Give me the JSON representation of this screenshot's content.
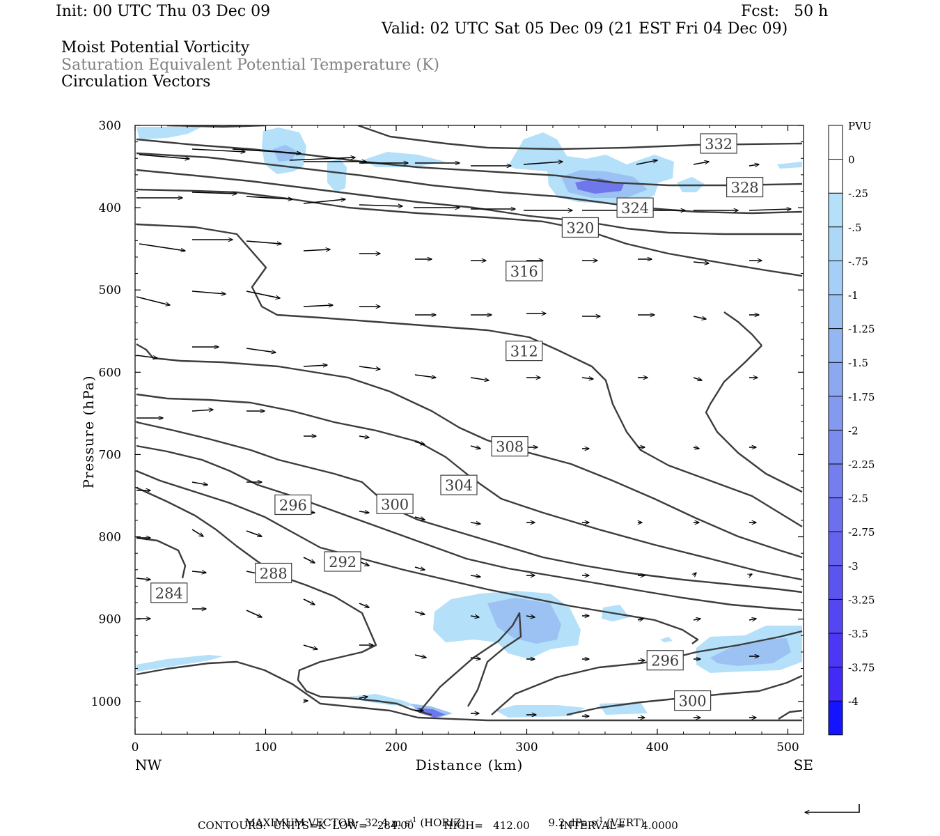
{
  "header": {
    "init": "Init: 00 UTC Thu 03 Dec 09",
    "fcst": "Fcst:   50 h",
    "valid": "Valid: 02 UTC Sat 05 Dec 09 (21 EST Fri 04 Dec 09)",
    "field1": "Moist Potential Vorticity",
    "field2": "Saturation Equivalent Potential Temperature (K)",
    "field3": "Circulation Vectors"
  },
  "footer": {
    "max_vector_label": "MAXIMUM VECTOR:",
    "max_horiz": "32.4 m s",
    "horiz_tag": "(HORIZ)",
    "max_vert": "9.2 dPa s",
    "vert_tag": "(VERT)",
    "exponent": "-1",
    "contours_line": "CONTOURS:  UNITS=K  LOW=   284.00         HIGH=   412.00         INTERVAL=     4.0000"
  },
  "colors": {
    "contour": "#3c3c3c",
    "shade_light": "#b4e0fa",
    "shade_mid": "#9cc2f4",
    "shade_strong": "#6e78ea",
    "vector": "#000000"
  },
  "chart_data": {
    "type": "contour",
    "xlabel": "Distance (km)",
    "ylabel": "Pressure (hPa)",
    "xlim": [
      0,
      512
    ],
    "ylim": [
      300,
      1040
    ],
    "x_ticks": [
      0,
      100,
      200,
      300,
      400,
      500
    ],
    "y_ticks": [
      300,
      400,
      500,
      600,
      700,
      800,
      900,
      1000
    ],
    "x_end_labels": {
      "left": "NW",
      "right": "SE"
    },
    "colorbar": {
      "title": "PVU",
      "levels": [
        "0",
        "-.25",
        "-.5",
        "-.75",
        "-1",
        "-1.25",
        "-1.5",
        "-1.75",
        "-2",
        "-2.25",
        "-2.5",
        "-2.75",
        "-3",
        "-3.25",
        "-3.5",
        "-3.75",
        "-4"
      ],
      "colors": [
        "#ffffff",
        "#ffffff",
        "#b4e0fa",
        "#acd8f8",
        "#a4cff6",
        "#9cc2f4",
        "#94b6f2",
        "#8ca8f0",
        "#849af0",
        "#7c8cee",
        "#747eee",
        "#6c70ee",
        "#6462ee",
        "#5c54f0",
        "#5446f2",
        "#4c38f4",
        "#442af6",
        "#1414ff"
      ]
    },
    "contour_labels": [
      {
        "text": "332",
        "x": 447,
        "p": 322
      },
      {
        "text": "328",
        "x": 467,
        "p": 375
      },
      {
        "text": "324",
        "x": 383,
        "p": 400
      },
      {
        "text": "320",
        "x": 341,
        "p": 424
      },
      {
        "text": "316",
        "x": 298,
        "p": 477
      },
      {
        "text": "312",
        "x": 298,
        "p": 574
      },
      {
        "text": "308",
        "x": 287,
        "p": 690
      },
      {
        "text": "304",
        "x": 248,
        "p": 737
      },
      {
        "text": "300",
        "x": 199,
        "p": 760
      },
      {
        "text": "296",
        "x": 121,
        "p": 761
      },
      {
        "text": "292",
        "x": 159,
        "p": 830
      },
      {
        "text": "288",
        "x": 106,
        "p": 844
      },
      {
        "text": "284",
        "x": 26,
        "p": 868
      },
      {
        "text": "296",
        "x": 406,
        "p": 950
      },
      {
        "text": "300",
        "x": 427,
        "p": 999
      }
    ]
  }
}
